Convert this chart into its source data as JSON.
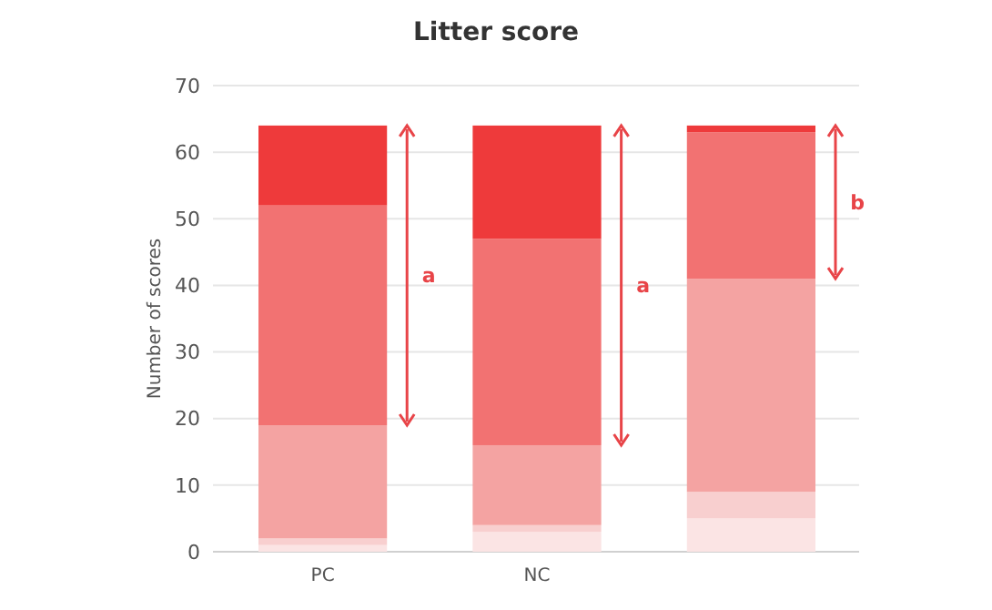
{
  "chart_data": {
    "type": "bar",
    "title": "Litter score",
    "ylabel": "Number of scores",
    "categories": [
      "PC",
      "NC",
      null
    ],
    "stacked": true,
    "ylim": [
      0,
      70
    ],
    "yticks": [
      0,
      10,
      20,
      30,
      40,
      50,
      60,
      70
    ],
    "grid": "y",
    "series": [
      {
        "color": "#fbe4e4",
        "values": [
          1,
          3,
          5
        ]
      },
      {
        "color": "#f8cfcf",
        "values": [
          1,
          1,
          4
        ]
      },
      {
        "color": "#f4a3a2",
        "values": [
          17,
          12,
          32
        ]
      },
      {
        "color": "#f27272",
        "values": [
          33,
          31,
          22
        ]
      },
      {
        "color": "#ee3a3b",
        "values": [
          12,
          17,
          1
        ]
      }
    ],
    "annotations": [
      "a",
      "a",
      "b"
    ]
  }
}
